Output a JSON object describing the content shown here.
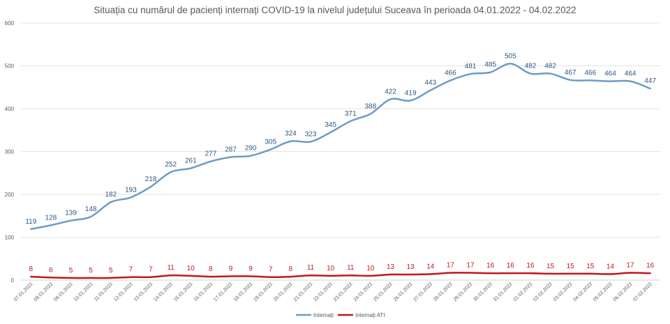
{
  "chart_data": {
    "type": "line",
    "title": "Situația cu numărul de pacienți internați COVID-19 la nivelul județului Suceava în perioada 04.01.2022 - 04.02.2022",
    "xlabel": "",
    "ylabel": "",
    "ylim": [
      0,
      600
    ],
    "yticks": [
      0,
      100,
      200,
      300,
      400,
      500,
      600
    ],
    "grid": true,
    "legend_position": "bottom",
    "categories": [
      "07.01.2022",
      "08.01.2022",
      "09.01.2022",
      "10.01.2022",
      "11.01.2022",
      "12.01.2022",
      "13.01.2022",
      "14.01.2022",
      "15.01.2022",
      "16.01.2022",
      "17.01.2022",
      "18.01.2022",
      "19.01.2022",
      "20.01.2022",
      "21.01.2022",
      "22.01.2022",
      "23.01.2022",
      "24.01.2022",
      "25.01.2022",
      "26.01.2022",
      "27.01.2022",
      "28.01.2022",
      "29.01.2022",
      "30.01.2022",
      "31.01.2022",
      "01.02.2022",
      "02.02.2022",
      "03.02.2022",
      "04.02.2022",
      "05.02.2022",
      "06.02.2022",
      "07.02.2022"
    ],
    "series": [
      {
        "name": "Internați",
        "color": "#6d9bc7",
        "label_color": "#2f5680",
        "values": [
          119,
          128,
          139,
          148,
          182,
          193,
          218,
          252,
          261,
          277,
          287,
          290,
          305,
          324,
          323,
          345,
          371,
          388,
          422,
          419,
          443,
          466,
          481,
          485,
          505,
          482,
          482,
          467,
          466,
          464,
          464,
          447
        ]
      },
      {
        "name": "Internați ATI",
        "color": "#c0171c",
        "label_color": "#c0171c",
        "values": [
          8,
          6,
          5,
          5,
          5,
          7,
          7,
          11,
          10,
          8,
          9,
          9,
          7,
          8,
          11,
          10,
          11,
          10,
          13,
          13,
          14,
          17,
          17,
          16,
          16,
          16,
          15,
          15,
          15,
          14,
          17,
          16
        ]
      }
    ]
  }
}
